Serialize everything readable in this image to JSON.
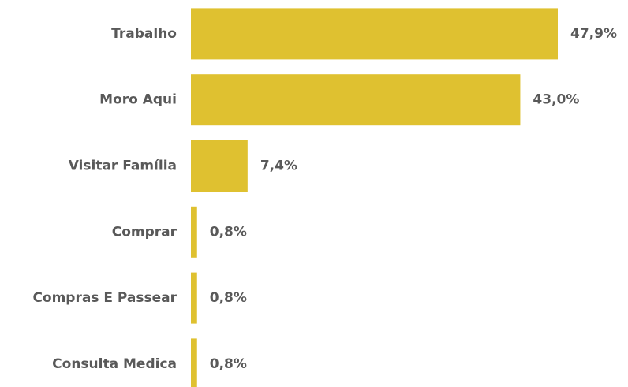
{
  "chart_data": {
    "type": "hbar",
    "categories": [
      "Trabalho",
      "Moro Aqui",
      "Visitar Família",
      "Comprar",
      "Compras E Passear",
      "Consulta Medica"
    ],
    "values": [
      47.9,
      43.0,
      7.4,
      0.8,
      0.8,
      0.8
    ],
    "value_labels": [
      "47,9%",
      "43,0%",
      "7,4%",
      "0,8%",
      "0,8%",
      "0,8%"
    ],
    "color": "#dfc130"
  }
}
